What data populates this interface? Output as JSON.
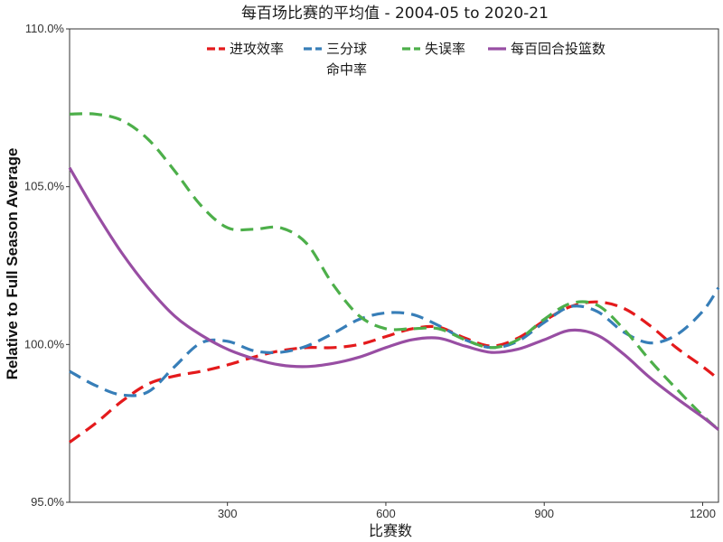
{
  "chart_data": {
    "type": "line",
    "title": "每百场比赛的平均值  - 2004-05 to 2020-21",
    "xlabel": "比赛数",
    "ylabel": "Relative to Full Season Average",
    "xlim": [
      1,
      1230
    ],
    "ylim": [
      95.0,
      110.0
    ],
    "x_ticks": [
      300,
      600,
      900,
      1200
    ],
    "x_tick_labels": [
      "300",
      "600",
      "900",
      "1200"
    ],
    "y_ticks": [
      95,
      100,
      105,
      110
    ],
    "y_tick_labels": [
      "95.0%",
      "100.0%",
      "105.0%",
      "110.0%"
    ],
    "grid": false,
    "legend_position": "top",
    "series": [
      {
        "name": "进攻效率",
        "color": "#e41a1c",
        "dash": "dashed",
        "points": [
          [
            1,
            96.9
          ],
          [
            50,
            97.5
          ],
          [
            100,
            98.2
          ],
          [
            150,
            98.75
          ],
          [
            200,
            99.0
          ],
          [
            250,
            99.15
          ],
          [
            300,
            99.35
          ],
          [
            350,
            99.6
          ],
          [
            400,
            99.8
          ],
          [
            450,
            99.9
          ],
          [
            500,
            99.9
          ],
          [
            550,
            100.0
          ],
          [
            600,
            100.25
          ],
          [
            650,
            100.5
          ],
          [
            700,
            100.55
          ],
          [
            750,
            100.2
          ],
          [
            800,
            99.95
          ],
          [
            850,
            100.2
          ],
          [
            900,
            100.75
          ],
          [
            950,
            101.2
          ],
          [
            1000,
            101.35
          ],
          [
            1050,
            101.15
          ],
          [
            1100,
            100.6
          ],
          [
            1150,
            99.9
          ],
          [
            1200,
            99.3
          ],
          [
            1230,
            98.9
          ]
        ]
      },
      {
        "name": "三分球命中率",
        "color": "#377eb8",
        "dash": "dashed",
        "points": [
          [
            1,
            99.15
          ],
          [
            50,
            98.7
          ],
          [
            100,
            98.4
          ],
          [
            150,
            98.5
          ],
          [
            200,
            99.3
          ],
          [
            250,
            100.05
          ],
          [
            300,
            100.1
          ],
          [
            350,
            99.8
          ],
          [
            400,
            99.75
          ],
          [
            450,
            99.95
          ],
          [
            500,
            100.35
          ],
          [
            550,
            100.8
          ],
          [
            600,
            101.0
          ],
          [
            650,
            100.95
          ],
          [
            700,
            100.6
          ],
          [
            750,
            100.15
          ],
          [
            800,
            99.9
          ],
          [
            850,
            100.1
          ],
          [
            900,
            100.7
          ],
          [
            950,
            101.2
          ],
          [
            1000,
            101.05
          ],
          [
            1050,
            100.4
          ],
          [
            1100,
            100.05
          ],
          [
            1150,
            100.3
          ],
          [
            1200,
            101.05
          ],
          [
            1230,
            101.8
          ]
        ]
      },
      {
        "name": "失误率",
        "color": "#4daf4a",
        "dash": "dashed",
        "points": [
          [
            1,
            107.3
          ],
          [
            50,
            107.3
          ],
          [
            100,
            107.1
          ],
          [
            150,
            106.5
          ],
          [
            200,
            105.5
          ],
          [
            250,
            104.4
          ],
          [
            300,
            103.7
          ],
          [
            350,
            103.65
          ],
          [
            400,
            103.7
          ],
          [
            450,
            103.2
          ],
          [
            500,
            101.9
          ],
          [
            550,
            100.9
          ],
          [
            600,
            100.5
          ],
          [
            650,
            100.5
          ],
          [
            700,
            100.5
          ],
          [
            750,
            100.15
          ],
          [
            800,
            99.9
          ],
          [
            850,
            100.15
          ],
          [
            900,
            100.8
          ],
          [
            950,
            101.3
          ],
          [
            1000,
            101.25
          ],
          [
            1050,
            100.5
          ],
          [
            1100,
            99.5
          ],
          [
            1150,
            98.6
          ],
          [
            1200,
            97.75
          ],
          [
            1230,
            97.3
          ]
        ]
      },
      {
        "name": "每百回合投篮数",
        "color": "#984ea3",
        "dash": "solid",
        "points": [
          [
            1,
            105.6
          ],
          [
            50,
            104.2
          ],
          [
            100,
            102.9
          ],
          [
            150,
            101.8
          ],
          [
            200,
            100.9
          ],
          [
            250,
            100.3
          ],
          [
            300,
            99.85
          ],
          [
            350,
            99.55
          ],
          [
            400,
            99.35
          ],
          [
            450,
            99.3
          ],
          [
            500,
            99.4
          ],
          [
            550,
            99.6
          ],
          [
            600,
            99.9
          ],
          [
            650,
            100.15
          ],
          [
            700,
            100.2
          ],
          [
            750,
            99.95
          ],
          [
            800,
            99.75
          ],
          [
            850,
            99.85
          ],
          [
            900,
            100.15
          ],
          [
            950,
            100.45
          ],
          [
            1000,
            100.3
          ],
          [
            1050,
            99.7
          ],
          [
            1100,
            98.95
          ],
          [
            1150,
            98.3
          ],
          [
            1200,
            97.7
          ],
          [
            1230,
            97.3
          ]
        ]
      }
    ],
    "legend": {
      "items": [
        {
          "line1": "进攻效率",
          "line2": ""
        },
        {
          "line1": "三分球",
          "line2": "命中率"
        },
        {
          "line1": "失误率",
          "line2": ""
        },
        {
          "line1": "每百回合投篮数",
          "line2": ""
        }
      ]
    }
  }
}
